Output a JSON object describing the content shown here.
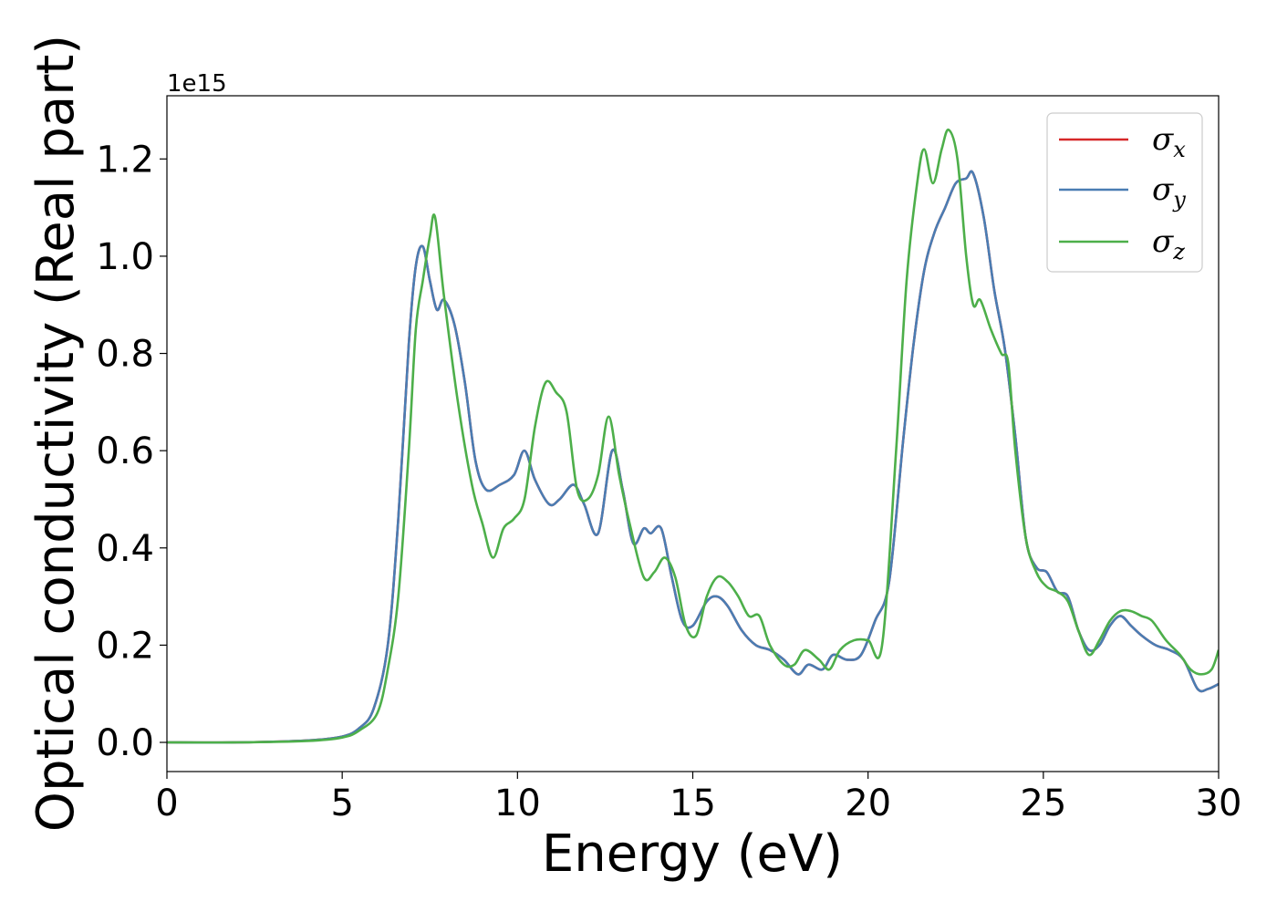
{
  "chart_data": {
    "type": "line",
    "xlabel": "Energy (eV)",
    "ylabel": "Optical conductivity (Real part)",
    "y_offset_text": "1e15",
    "xlim": [
      0,
      30
    ],
    "ylim": [
      -0.06,
      1.33
    ],
    "x_ticks": [
      0,
      5,
      10,
      15,
      20,
      25,
      30
    ],
    "x_tick_labels": [
      "0",
      "5",
      "10",
      "15",
      "20",
      "25",
      "30"
    ],
    "y_ticks": [
      0.0,
      0.2,
      0.4,
      0.6,
      0.8,
      1.0,
      1.2
    ],
    "y_tick_labels": [
      "0.0",
      "0.2",
      "0.4",
      "0.6",
      "0.8",
      "1.0",
      "1.2"
    ],
    "grid": false,
    "legend_position": "top-right",
    "series": [
      {
        "name": "σx",
        "legend_base": "σ",
        "legend_sub": "x",
        "color": "#d62728",
        "x": [
          0,
          2,
          4,
          5,
          5.5,
          5.9,
          6.3,
          6.6,
          6.9,
          7.1,
          7.3,
          7.5,
          7.7,
          7.9,
          8.2,
          8.5,
          8.8,
          9.1,
          9.5,
          9.9,
          10.2,
          10.5,
          10.9,
          11.2,
          11.6,
          11.9,
          12.3,
          12.7,
          13.0,
          13.3,
          13.6,
          13.8,
          14.1,
          14.4,
          14.7,
          15.0,
          15.4,
          15.7,
          16.0,
          16.4,
          16.8,
          17.2,
          17.6,
          18.0,
          18.3,
          18.7,
          19.0,
          19.4,
          19.8,
          20.2,
          20.6,
          21.0,
          21.3,
          21.6,
          21.9,
          22.2,
          22.5,
          22.8,
          23.0,
          23.3,
          23.6,
          23.9,
          24.2,
          24.5,
          24.8,
          25.1,
          25.4,
          25.7,
          26.0,
          26.3,
          26.6,
          26.9,
          27.2,
          27.5,
          27.8,
          28.2,
          28.6,
          29.0,
          29.4,
          29.7,
          30.0
        ],
        "y": [
          0.0,
          0.0,
          0.004,
          0.012,
          0.03,
          0.07,
          0.2,
          0.46,
          0.82,
          0.98,
          1.02,
          0.95,
          0.89,
          0.91,
          0.86,
          0.74,
          0.58,
          0.52,
          0.53,
          0.55,
          0.6,
          0.54,
          0.49,
          0.5,
          0.53,
          0.49,
          0.43,
          0.6,
          0.52,
          0.41,
          0.44,
          0.43,
          0.44,
          0.34,
          0.25,
          0.24,
          0.29,
          0.3,
          0.28,
          0.23,
          0.2,
          0.19,
          0.17,
          0.14,
          0.16,
          0.15,
          0.18,
          0.17,
          0.18,
          0.25,
          0.33,
          0.62,
          0.82,
          0.97,
          1.05,
          1.1,
          1.15,
          1.16,
          1.17,
          1.08,
          0.93,
          0.81,
          0.63,
          0.42,
          0.36,
          0.35,
          0.31,
          0.3,
          0.23,
          0.19,
          0.2,
          0.24,
          0.26,
          0.24,
          0.22,
          0.2,
          0.19,
          0.17,
          0.11,
          0.11,
          0.12
        ]
      },
      {
        "name": "σy",
        "legend_base": "σ",
        "legend_sub": "y",
        "color": "#4a7db3",
        "x": [
          0,
          2,
          4,
          5,
          5.5,
          5.9,
          6.3,
          6.6,
          6.9,
          7.1,
          7.3,
          7.5,
          7.7,
          7.9,
          8.2,
          8.5,
          8.8,
          9.1,
          9.5,
          9.9,
          10.2,
          10.5,
          10.9,
          11.2,
          11.6,
          11.9,
          12.3,
          12.7,
          13.0,
          13.3,
          13.6,
          13.8,
          14.1,
          14.4,
          14.7,
          15.0,
          15.4,
          15.7,
          16.0,
          16.4,
          16.8,
          17.2,
          17.6,
          18.0,
          18.3,
          18.7,
          19.0,
          19.4,
          19.8,
          20.2,
          20.6,
          21.0,
          21.3,
          21.6,
          21.9,
          22.2,
          22.5,
          22.8,
          23.0,
          23.3,
          23.6,
          23.9,
          24.2,
          24.5,
          24.8,
          25.1,
          25.4,
          25.7,
          26.0,
          26.3,
          26.6,
          26.9,
          27.2,
          27.5,
          27.8,
          28.2,
          28.6,
          29.0,
          29.4,
          29.7,
          30.0
        ],
        "y": [
          0.0,
          0.0,
          0.004,
          0.012,
          0.03,
          0.07,
          0.2,
          0.46,
          0.82,
          0.98,
          1.02,
          0.95,
          0.89,
          0.91,
          0.86,
          0.74,
          0.58,
          0.52,
          0.53,
          0.55,
          0.6,
          0.54,
          0.49,
          0.5,
          0.53,
          0.49,
          0.43,
          0.6,
          0.52,
          0.41,
          0.44,
          0.43,
          0.44,
          0.34,
          0.25,
          0.24,
          0.29,
          0.3,
          0.28,
          0.23,
          0.2,
          0.19,
          0.17,
          0.14,
          0.16,
          0.15,
          0.18,
          0.17,
          0.18,
          0.25,
          0.33,
          0.62,
          0.82,
          0.97,
          1.05,
          1.1,
          1.15,
          1.16,
          1.17,
          1.08,
          0.93,
          0.81,
          0.63,
          0.42,
          0.36,
          0.35,
          0.31,
          0.3,
          0.23,
          0.19,
          0.2,
          0.24,
          0.26,
          0.24,
          0.22,
          0.2,
          0.19,
          0.17,
          0.11,
          0.11,
          0.12
        ]
      },
      {
        "name": "σz",
        "legend_base": "σ",
        "legend_sub": "z",
        "color": "#4daf4a",
        "x": [
          0,
          2,
          4,
          5,
          5.5,
          6.0,
          6.3,
          6.6,
          6.9,
          7.1,
          7.3,
          7.5,
          7.65,
          7.9,
          8.3,
          8.7,
          9.0,
          9.3,
          9.6,
          9.9,
          10.2,
          10.5,
          10.8,
          11.1,
          11.4,
          11.7,
          12.0,
          12.3,
          12.6,
          12.9,
          13.2,
          13.6,
          13.9,
          14.2,
          14.5,
          14.8,
          15.1,
          15.4,
          15.7,
          16.0,
          16.3,
          16.6,
          16.9,
          17.2,
          17.6,
          17.9,
          18.2,
          18.6,
          18.9,
          19.2,
          19.6,
          20.0,
          20.4,
          20.8,
          21.1,
          21.4,
          21.6,
          21.85,
          22.1,
          22.3,
          22.55,
          22.8,
          23.0,
          23.2,
          23.5,
          23.8,
          24.0,
          24.2,
          24.5,
          24.8,
          25.1,
          25.4,
          25.7,
          26.0,
          26.3,
          26.6,
          26.9,
          27.2,
          27.5,
          27.8,
          28.1,
          28.5,
          28.9,
          29.2,
          29.5,
          29.8,
          30.0
        ],
        "y": [
          0.0,
          0.0,
          0.003,
          0.01,
          0.025,
          0.06,
          0.15,
          0.3,
          0.6,
          0.85,
          0.95,
          1.04,
          1.08,
          0.92,
          0.7,
          0.53,
          0.45,
          0.38,
          0.44,
          0.46,
          0.5,
          0.65,
          0.74,
          0.72,
          0.68,
          0.52,
          0.5,
          0.55,
          0.67,
          0.55,
          0.45,
          0.34,
          0.35,
          0.38,
          0.34,
          0.24,
          0.22,
          0.3,
          0.34,
          0.33,
          0.3,
          0.26,
          0.26,
          0.2,
          0.16,
          0.16,
          0.19,
          0.17,
          0.15,
          0.19,
          0.21,
          0.21,
          0.2,
          0.6,
          0.95,
          1.15,
          1.22,
          1.15,
          1.22,
          1.26,
          1.2,
          1.0,
          0.9,
          0.91,
          0.85,
          0.8,
          0.78,
          0.6,
          0.42,
          0.35,
          0.32,
          0.31,
          0.29,
          0.23,
          0.18,
          0.21,
          0.25,
          0.27,
          0.27,
          0.26,
          0.25,
          0.21,
          0.18,
          0.15,
          0.14,
          0.15,
          0.19
        ]
      }
    ]
  }
}
